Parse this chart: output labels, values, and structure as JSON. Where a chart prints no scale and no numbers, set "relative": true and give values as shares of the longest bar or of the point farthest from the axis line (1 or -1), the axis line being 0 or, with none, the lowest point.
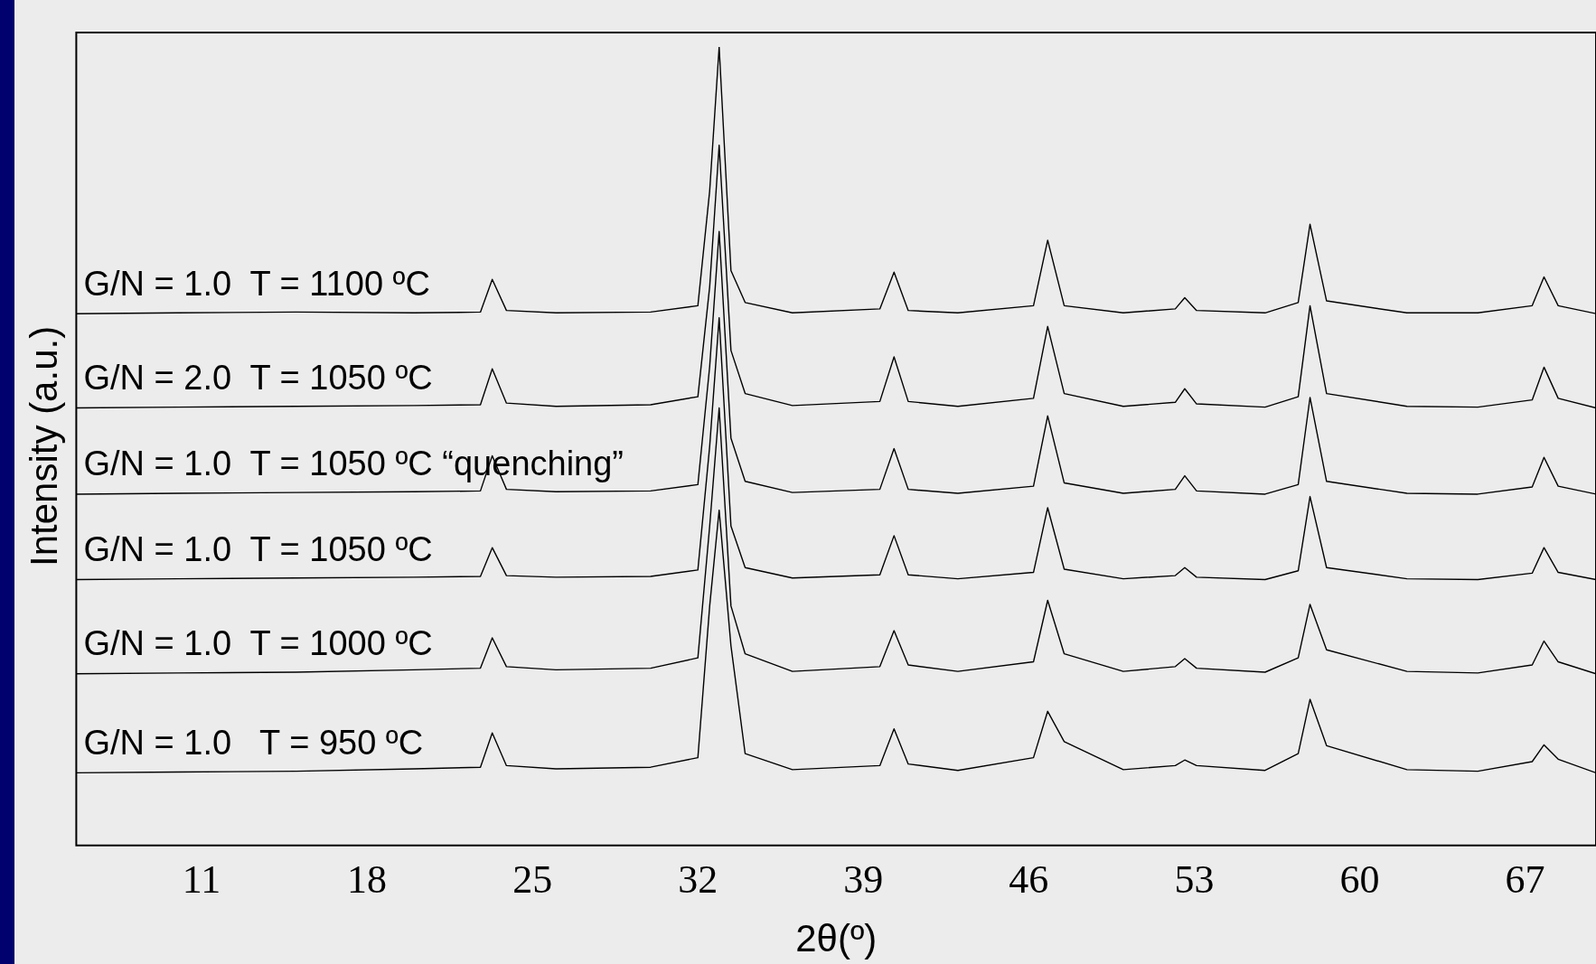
{
  "chart_data": {
    "type": "line",
    "relative": true,
    "xlabel": "2θ(º)",
    "ylabel": "Intensity (a.u.)",
    "xlim": [
      5.7,
      70
    ],
    "xticks": [
      11,
      18,
      25,
      32,
      39,
      46,
      53,
      60,
      67
    ],
    "grid": false,
    "legend": false,
    "marker": "none",
    "line_style": "solid",
    "x": [
      5.7,
      10,
      15,
      20,
      22.8,
      23.3,
      23.9,
      26,
      30,
      32.0,
      32.5,
      32.9,
      33.4,
      34.0,
      36,
      39.7,
      40.3,
      40.9,
      43,
      46.2,
      46.8,
      47.5,
      50,
      52.2,
      52.6,
      53.1,
      56,
      57.4,
      57.9,
      58.6,
      62,
      65,
      67.3,
      67.8,
      68.4,
      70
    ],
    "series": [
      {
        "name": "G/N = 1.0  T = 1100 ºC",
        "color": "#000000",
        "values": [
          0.666,
          0.667,
          0.668,
          0.667,
          0.668,
          0.709,
          0.67,
          0.667,
          0.668,
          0.676,
          0.82,
          1.0,
          0.72,
          0.68,
          0.667,
          0.672,
          0.718,
          0.67,
          0.667,
          0.676,
          0.758,
          0.676,
          0.667,
          0.672,
          0.686,
          0.67,
          0.667,
          0.68,
          0.778,
          0.682,
          0.667,
          0.667,
          0.676,
          0.712,
          0.676,
          0.666
        ]
      },
      {
        "name": "G/N = 2.0  T = 1050 ºC",
        "color": "#000000",
        "values": [
          0.548,
          0.549,
          0.55,
          0.551,
          0.552,
          0.597,
          0.554,
          0.55,
          0.552,
          0.562,
          0.7,
          0.877,
          0.62,
          0.566,
          0.551,
          0.556,
          0.612,
          0.556,
          0.55,
          0.56,
          0.65,
          0.566,
          0.55,
          0.555,
          0.572,
          0.553,
          0.549,
          0.562,
          0.676,
          0.566,
          0.55,
          0.549,
          0.558,
          0.599,
          0.56,
          0.548
        ]
      },
      {
        "name": "G/N = 1.0  T = 1050 ºC “quenching”",
        "color": "#000000",
        "values": [
          0.44,
          0.441,
          0.442,
          0.443,
          0.444,
          0.488,
          0.446,
          0.443,
          0.444,
          0.452,
          0.6,
          0.769,
          0.51,
          0.456,
          0.442,
          0.446,
          0.497,
          0.446,
          0.441,
          0.45,
          0.538,
          0.454,
          0.441,
          0.446,
          0.463,
          0.444,
          0.44,
          0.452,
          0.561,
          0.456,
          0.441,
          0.44,
          0.449,
          0.486,
          0.45,
          0.44
        ]
      },
      {
        "name": "G/N = 1.0  T = 1050 ºC",
        "color": "#000000",
        "values": [
          0.333,
          0.334,
          0.335,
          0.336,
          0.337,
          0.373,
          0.338,
          0.336,
          0.337,
          0.345,
          0.5,
          0.661,
          0.4,
          0.348,
          0.335,
          0.339,
          0.388,
          0.339,
          0.334,
          0.342,
          0.423,
          0.346,
          0.334,
          0.338,
          0.348,
          0.336,
          0.333,
          0.344,
          0.437,
          0.348,
          0.334,
          0.333,
          0.341,
          0.373,
          0.342,
          0.333
        ]
      },
      {
        "name": "G/N = 1.0  T = 1000 ºC",
        "color": "#000000",
        "values": [
          0.215,
          0.216,
          0.217,
          0.22,
          0.222,
          0.26,
          0.224,
          0.22,
          0.222,
          0.235,
          0.4,
          0.548,
          0.3,
          0.24,
          0.218,
          0.224,
          0.269,
          0.226,
          0.218,
          0.23,
          0.307,
          0.24,
          0.218,
          0.224,
          0.234,
          0.222,
          0.217,
          0.235,
          0.302,
          0.245,
          0.218,
          0.216,
          0.226,
          0.256,
          0.23,
          0.215
        ]
      },
      {
        "name": "G/N = 1.0   T = 950 ºC",
        "color": "#000000",
        "values": [
          0.091,
          0.092,
          0.093,
          0.096,
          0.098,
          0.141,
          0.1,
          0.096,
          0.098,
          0.11,
          0.3,
          0.42,
          0.25,
          0.115,
          0.095,
          0.1,
          0.146,
          0.102,
          0.094,
          0.11,
          0.168,
          0.13,
          0.095,
          0.1,
          0.107,
          0.1,
          0.094,
          0.115,
          0.183,
          0.125,
          0.095,
          0.093,
          0.105,
          0.126,
          0.108,
          0.091
        ]
      }
    ]
  }
}
